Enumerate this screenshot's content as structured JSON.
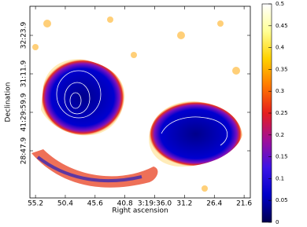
{
  "chart_data": {
    "type": "image",
    "x_label": "Right ascension",
    "y_label": "Declination",
    "xlim": [
      56.1,
      20.6
    ],
    "xticks": [
      55.2,
      50.4,
      45.6,
      40.8,
      {
        "value": 36.0,
        "label": "3:19:36.0"
      },
      31.2,
      26.4,
      21.6
    ],
    "ylim": [
      1639.7,
      1998.3
    ],
    "yticks": [
      {
        "value": 1943.9,
        "label": "32:23.9"
      },
      {
        "value": 1871.9,
        "label": "31:11.9"
      },
      {
        "value": 1799.9,
        "label": "41:29:59.9"
      },
      {
        "value": 1727.9,
        "label": "28:47.9"
      }
    ],
    "colorbar": {
      "lim": [
        0,
        0.5
      ],
      "ticks": [
        0,
        0.05,
        0.1,
        0.15,
        0.2,
        0.25,
        0.3,
        0.35,
        0.4,
        0.45,
        0.5
      ],
      "colormap": [
        "#000050",
        "#0000c8",
        "#3c14e6",
        "#a0109a",
        "#e61e1e",
        "#ff7800",
        "#ffd200",
        "#ffff96",
        "#ffffff"
      ]
    }
  }
}
